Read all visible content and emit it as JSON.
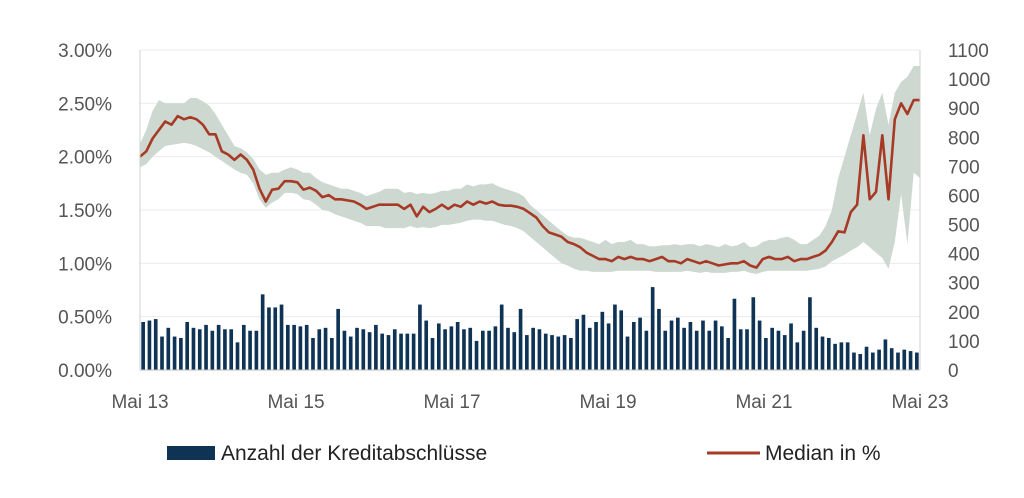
{
  "chart_data": {
    "type": "bar+line",
    "title": "",
    "xlabel": "",
    "ylabel": "",
    "x_tick_labels": [
      "Mai 13",
      "Mai 15",
      "Mai 17",
      "Mai 19",
      "Mai 21",
      "Mai 23"
    ],
    "y_left_tick_labels": [
      "0.00%",
      "0.50%",
      "1.00%",
      "1.50%",
      "2.00%",
      "2.50%",
      "3.00%"
    ],
    "y_right_tick_labels": [
      "0",
      "100",
      "200",
      "300",
      "400",
      "500",
      "600",
      "700",
      "800",
      "900",
      "1000",
      "1100"
    ],
    "ylim_left": [
      0,
      3.0
    ],
    "ylim_right": [
      0,
      1100
    ],
    "grid": "horizontal",
    "legend_position": "bottom",
    "x_range": [
      "2013-05",
      "2023-05"
    ],
    "series": [
      {
        "name": "Anzahl der Kreditabschlüsse",
        "type": "bar",
        "axis": "right",
        "color": "#0e3355",
        "values": [
          165,
          170,
          175,
          115,
          145,
          115,
          110,
          165,
          145,
          140,
          155,
          135,
          155,
          140,
          140,
          95,
          155,
          135,
          135,
          260,
          215,
          215,
          225,
          155,
          155,
          150,
          155,
          110,
          140,
          145,
          110,
          210,
          135,
          115,
          145,
          140,
          130,
          155,
          125,
          120,
          140,
          125,
          125,
          125,
          225,
          170,
          110,
          160,
          140,
          150,
          165,
          140,
          145,
          100,
          135,
          135,
          150,
          225,
          145,
          130,
          210,
          120,
          145,
          140,
          125,
          120,
          115,
          120,
          110,
          175,
          190,
          145,
          165,
          200,
          160,
          225,
          205,
          115,
          165,
          180,
          135,
          285,
          210,
          135,
          170,
          180,
          145,
          165,
          135,
          170,
          135,
          170,
          150,
          110,
          245,
          140,
          140,
          250,
          170,
          110,
          145,
          135,
          120,
          160,
          95,
          135,
          250,
          145,
          115,
          110,
          90,
          95,
          95,
          60,
          55,
          80,
          60,
          70,
          105,
          75,
          60,
          70,
          65,
          60
        ],
        "x_start": "2013-05",
        "x_end": "2023-05"
      },
      {
        "name": "Median in %",
        "type": "line",
        "axis": "left",
        "color": "#a63a25",
        "values": [
          2.0,
          2.05,
          2.17,
          2.25,
          2.33,
          2.3,
          2.38,
          2.35,
          2.37,
          2.35,
          2.3,
          2.21,
          2.21,
          2.05,
          2.02,
          1.97,
          2.02,
          1.97,
          1.88,
          1.7,
          1.58,
          1.69,
          1.7,
          1.77,
          1.77,
          1.76,
          1.69,
          1.71,
          1.68,
          1.62,
          1.64,
          1.6,
          1.6,
          1.59,
          1.58,
          1.55,
          1.51,
          1.53,
          1.55,
          1.55,
          1.55,
          1.55,
          1.51,
          1.55,
          1.44,
          1.53,
          1.48,
          1.51,
          1.55,
          1.51,
          1.55,
          1.53,
          1.58,
          1.55,
          1.58,
          1.56,
          1.58,
          1.55,
          1.54,
          1.54,
          1.53,
          1.51,
          1.47,
          1.43,
          1.35,
          1.29,
          1.27,
          1.25,
          1.2,
          1.18,
          1.15,
          1.1,
          1.07,
          1.04,
          1.04,
          1.02,
          1.06,
          1.04,
          1.06,
          1.04,
          1.04,
          1.02,
          1.04,
          1.06,
          1.02,
          1.02,
          1.0,
          1.04,
          1.02,
          1.0,
          1.02,
          1.0,
          0.98,
          0.99,
          1.0,
          1.0,
          1.02,
          0.98,
          0.96,
          1.04,
          1.06,
          1.04,
          1.04,
          1.06,
          1.02,
          1.04,
          1.04,
          1.06,
          1.08,
          1.12,
          1.2,
          1.3,
          1.29,
          1.48,
          1.55,
          2.2,
          1.6,
          1.67,
          2.2,
          1.6,
          2.35,
          2.5,
          2.4,
          2.53,
          2.53
        ]
      },
      {
        "name": "",
        "type": "band",
        "axis": "left",
        "color": "#cdd8d1",
        "lower": [
          1.9,
          1.93,
          2.0,
          2.05,
          2.1,
          2.11,
          2.12,
          2.13,
          2.12,
          2.1,
          2.07,
          2.04,
          2.0,
          1.96,
          1.92,
          1.88,
          1.85,
          1.83,
          1.75,
          1.6,
          1.52,
          1.57,
          1.6,
          1.66,
          1.66,
          1.65,
          1.6,
          1.59,
          1.55,
          1.5,
          1.49,
          1.46,
          1.44,
          1.42,
          1.4,
          1.38,
          1.35,
          1.35,
          1.35,
          1.33,
          1.33,
          1.33,
          1.33,
          1.35,
          1.33,
          1.34,
          1.33,
          1.34,
          1.36,
          1.36,
          1.37,
          1.38,
          1.4,
          1.41,
          1.41,
          1.4,
          1.4,
          1.38,
          1.36,
          1.35,
          1.33,
          1.3,
          1.25,
          1.2,
          1.15,
          1.1,
          1.05,
          1.0,
          0.98,
          0.95,
          0.93,
          0.93,
          0.92,
          0.92,
          0.92,
          0.92,
          0.93,
          0.93,
          0.93,
          0.93,
          0.93,
          0.93,
          0.92,
          0.92,
          0.92,
          0.92,
          0.92,
          0.93,
          0.92,
          0.91,
          0.92,
          0.91,
          0.91,
          0.91,
          0.92,
          0.92,
          0.93,
          0.91,
          0.9,
          0.92,
          0.93,
          0.93,
          0.93,
          0.93,
          0.93,
          0.93,
          0.93,
          0.94,
          0.95,
          0.97,
          1.02,
          1.05,
          1.08,
          1.12,
          1.15,
          1.2,
          1.15,
          1.1,
          1.05,
          0.95,
          1.2,
          1.65,
          1.18,
          1.85,
          1.8
        ],
        "upper": [
          2.12,
          2.25,
          2.43,
          2.53,
          2.5,
          2.5,
          2.5,
          2.5,
          2.55,
          2.55,
          2.52,
          2.48,
          2.4,
          2.3,
          2.2,
          2.1,
          2.08,
          2.04,
          1.98,
          1.88,
          1.83,
          1.85,
          1.85,
          1.88,
          1.9,
          1.88,
          1.85,
          1.85,
          1.8,
          1.76,
          1.74,
          1.72,
          1.7,
          1.7,
          1.68,
          1.66,
          1.63,
          1.65,
          1.67,
          1.7,
          1.7,
          1.7,
          1.66,
          1.67,
          1.65,
          1.66,
          1.65,
          1.66,
          1.68,
          1.68,
          1.7,
          1.7,
          1.74,
          1.72,
          1.74,
          1.74,
          1.75,
          1.72,
          1.7,
          1.68,
          1.66,
          1.63,
          1.55,
          1.5,
          1.45,
          1.4,
          1.35,
          1.3,
          1.26,
          1.24,
          1.24,
          1.22,
          1.2,
          1.18,
          1.22,
          1.18,
          1.2,
          1.2,
          1.22,
          1.18,
          1.18,
          1.16,
          1.16,
          1.17,
          1.17,
          1.18,
          1.17,
          1.18,
          1.18,
          1.16,
          1.18,
          1.17,
          1.15,
          1.18,
          1.16,
          1.17,
          1.2,
          1.15,
          1.16,
          1.2,
          1.22,
          1.22,
          1.24,
          1.25,
          1.22,
          1.18,
          1.18,
          1.22,
          1.26,
          1.35,
          1.5,
          1.8,
          2.0,
          2.2,
          2.4,
          2.6,
          2.2,
          2.45,
          2.6,
          2.3,
          2.6,
          2.7,
          2.75,
          2.85,
          2.85
        ]
      }
    ]
  }
}
